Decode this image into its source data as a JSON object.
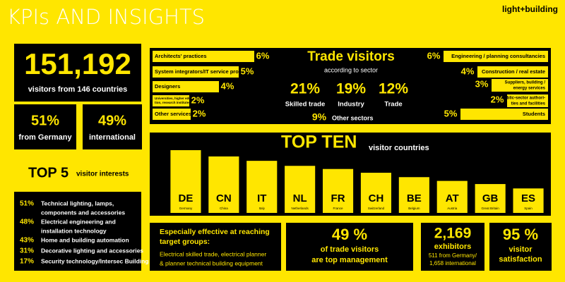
{
  "header": {
    "title": "KPIs AND INSIGHTS",
    "brand": "light+building"
  },
  "visitors": {
    "total": "151,192",
    "caption": "visitors from 146 countries"
  },
  "origin": [
    {
      "value": "51%",
      "label": "from Germany"
    },
    {
      "value": "49%",
      "label": "international"
    }
  ],
  "interests": {
    "title": "TOP 5",
    "subtitle": "visitor interests",
    "items": [
      {
        "pct": "51%",
        "text": [
          "Technical lighting, lamps,",
          "components and accessories"
        ]
      },
      {
        "pct": "48%",
        "text": [
          "Electrical engineering and",
          "installation technology"
        ]
      },
      {
        "pct": "43%",
        "text": [
          "Home and building automation"
        ]
      },
      {
        "pct": "31%",
        "text": [
          "Decorative lighting and accessories"
        ]
      },
      {
        "pct": "17%",
        "text": [
          "Security technology/Intersec Building"
        ]
      }
    ]
  },
  "sectors": {
    "title": "Trade visitors",
    "subtitle": "according to sector",
    "left": [
      {
        "label": [
          "Architects' practices"
        ],
        "pct": "6%"
      },
      {
        "label": [
          "System integrators/IT service providers"
        ],
        "pct": "5%"
      },
      {
        "label": [
          "Designers"
        ],
        "pct": "4%"
      },
      {
        "label": [
          "Universities, higher educa-",
          "tion, research institutes"
        ],
        "pct": "2%"
      },
      {
        "label": [
          "Other services"
        ],
        "pct": "2%"
      }
    ],
    "center": [
      {
        "pct": "21%",
        "label": "Skilled trade"
      },
      {
        "pct": "19%",
        "label": "Industry"
      },
      {
        "pct": "12%",
        "label": "Trade"
      }
    ],
    "other": {
      "pct": "9%",
      "label": "Other sectors"
    },
    "right": [
      {
        "pct": "6%",
        "label": [
          "Engineering / planning consultancies"
        ]
      },
      {
        "pct": "4%",
        "label": [
          "Construction / real estate"
        ]
      },
      {
        "pct": "3%",
        "label": [
          "Suppliers, building /",
          "energy services"
        ]
      },
      {
        "pct": "2%",
        "label": [
          "Public-sector authori-",
          "ties and facilities"
        ]
      },
      {
        "pct": "5%",
        "label": [
          "Students"
        ]
      }
    ]
  },
  "chart_data": {
    "type": "bar",
    "title": "TOP TEN",
    "subtitle": "visitor countries",
    "categories": [
      "DE",
      "CN",
      "IT",
      "NL",
      "FR",
      "CH",
      "BE",
      "AT",
      "GB",
      "ES"
    ],
    "labels": [
      "Germany",
      "China",
      "Italy",
      "Netherlands",
      "France",
      "Switzerland",
      "Belgium",
      "Austria",
      "Great Britain",
      "Spain"
    ],
    "values": [
      100,
      90,
      83,
      75,
      70,
      64,
      57,
      51,
      46,
      39
    ],
    "color": "#ffe600",
    "ylim": [
      0,
      100
    ]
  },
  "targets": {
    "title": [
      "Especially effective at reaching",
      "target groups:"
    ],
    "text": [
      "Electrical skilled trade, electrical planner",
      "& planner technical building equipment"
    ]
  },
  "management": {
    "value": "49 %",
    "text": [
      "of trade visitors",
      "are top management"
    ]
  },
  "exhibitors": {
    "value": "2,169",
    "text": [
      "exhibitors",
      "511 from Germany/",
      "1,658 international"
    ]
  },
  "satisfaction": {
    "value": "95 %",
    "text": [
      "visitor",
      "satisfaction"
    ]
  }
}
